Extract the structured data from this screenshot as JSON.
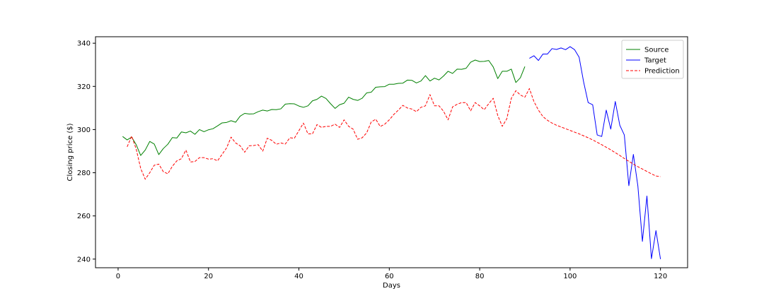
{
  "chart_data": {
    "type": "line",
    "title": "",
    "xlabel": "Days",
    "ylabel": "Closing price ($)",
    "xlim": [
      -5,
      126
    ],
    "ylim": [
      236,
      343
    ],
    "xticks": [
      0,
      20,
      40,
      60,
      80,
      100,
      120
    ],
    "yticks": [
      240,
      260,
      280,
      300,
      320,
      340
    ],
    "grid": false,
    "legend_position": "top-right",
    "series": [
      {
        "name": "Source",
        "color": "#008000",
        "style": "solid",
        "x": [
          1,
          2,
          3,
          4,
          5,
          6,
          7,
          8,
          9,
          10,
          11,
          12,
          13,
          14,
          15,
          16,
          17,
          18,
          19,
          20,
          21,
          22,
          23,
          24,
          25,
          26,
          27,
          28,
          29,
          30,
          31,
          32,
          33,
          34,
          35,
          36,
          37,
          38,
          39,
          40,
          41,
          42,
          43,
          44,
          45,
          46,
          47,
          48,
          49,
          50,
          51,
          52,
          53,
          54,
          55,
          56,
          57,
          58,
          59,
          60,
          61,
          62,
          63,
          64,
          65,
          66,
          67,
          68,
          69,
          70,
          71,
          72,
          73,
          74,
          75,
          76,
          77,
          78,
          79,
          80,
          81,
          82,
          83,
          84,
          85,
          86,
          87,
          88,
          89,
          90
        ],
        "y": [
          296.8,
          295.2,
          296.5,
          293.0,
          288.0,
          290.5,
          294.5,
          293.3,
          288.4,
          291.2,
          293.2,
          296.3,
          296.1,
          298.9,
          298.5,
          299.3,
          297.8,
          300.0,
          299.0,
          299.9,
          300.4,
          301.7,
          303.1,
          303.3,
          304.1,
          303.4,
          306.2,
          307.5,
          307.2,
          307.3,
          308.3,
          309.0,
          308.6,
          309.3,
          309.2,
          309.6,
          311.8,
          312.0,
          311.9,
          310.9,
          310.3,
          311.0,
          313.3,
          314.0,
          315.5,
          314.4,
          312.0,
          309.8,
          311.5,
          312.2,
          315.0,
          314.0,
          313.5,
          314.5,
          317.0,
          317.3,
          319.6,
          319.8,
          319.9,
          321.0,
          321.0,
          321.4,
          321.5,
          322.9,
          322.8,
          321.6,
          322.5,
          325.0,
          322.5,
          323.8,
          323.0,
          324.8,
          327.0,
          326.0,
          328.0,
          327.9,
          328.4,
          331.2,
          332.2,
          331.5,
          331.6,
          332.0,
          329.0,
          323.6,
          327.0,
          327.0,
          328.0,
          321.8,
          324.0,
          329.2
        ]
      },
      {
        "name": "Target",
        "color": "#0000ff",
        "style": "solid",
        "x": [
          91,
          92,
          93,
          94,
          95,
          96,
          97,
          98,
          99,
          100,
          101,
          102,
          103,
          104,
          105,
          106,
          107,
          108,
          109,
          110,
          111,
          112,
          113,
          114,
          115,
          116,
          117,
          118,
          119,
          120
        ],
        "y": [
          333.0,
          334.2,
          332.0,
          335.0,
          335.0,
          337.5,
          337.1,
          337.8,
          337.0,
          338.4,
          337.0,
          333.5,
          322.0,
          312.5,
          311.5,
          297.5,
          296.8,
          309.0,
          300.2,
          313.0,
          302.0,
          297.5,
          274.0,
          288.5,
          273.8,
          248.2,
          269.2,
          240.2,
          253.2,
          240.0
        ]
      },
      {
        "name": "Prediction",
        "color": "#ff0000",
        "style": "dashed",
        "x": [
          2,
          3,
          4,
          5,
          6,
          7,
          8,
          9,
          10,
          11,
          12,
          13,
          14,
          15,
          16,
          17,
          18,
          19,
          20,
          21,
          22,
          23,
          24,
          25,
          26,
          27,
          28,
          29,
          30,
          31,
          32,
          33,
          34,
          35,
          36,
          37,
          38,
          39,
          40,
          41,
          42,
          43,
          44,
          45,
          46,
          47,
          48,
          49,
          50,
          51,
          52,
          53,
          54,
          55,
          56,
          57,
          58,
          59,
          60,
          61,
          62,
          63,
          64,
          65,
          66,
          67,
          68,
          69,
          70,
          71,
          72,
          73,
          74,
          75,
          76,
          77,
          78,
          79,
          80,
          81,
          82,
          83,
          84,
          85,
          86,
          87,
          88,
          89,
          90,
          91,
          92,
          93,
          94,
          95,
          96,
          97,
          98,
          99,
          100,
          101,
          102,
          103,
          104,
          105,
          106,
          107,
          108,
          109,
          110,
          111,
          112,
          113,
          114,
          115,
          116,
          117,
          118,
          119,
          120
        ],
        "y": [
          292.0,
          297.0,
          291.0,
          282.0,
          277.0,
          280.0,
          283.5,
          284.0,
          280.5,
          279.5,
          283.0,
          285.5,
          286.5,
          290.5,
          285.0,
          285.2,
          287.0,
          287.0,
          286.3,
          286.5,
          285.5,
          288.5,
          291.5,
          296.5,
          293.8,
          292.5,
          289.5,
          292.5,
          292.6,
          293.0,
          290.0,
          296.0,
          295.0,
          293.2,
          293.8,
          293.3,
          296.2,
          296.0,
          299.5,
          303.0,
          298.0,
          298.0,
          302.3,
          301.0,
          301.5,
          301.5,
          302.5,
          301.0,
          304.5,
          301.5,
          300.2,
          295.5,
          296.2,
          298.5,
          303.5,
          304.8,
          301.4,
          302.5,
          304.5,
          307.0,
          309.0,
          311.2,
          310.0,
          309.5,
          308.3,
          310.3,
          311.0,
          316.2,
          311.0,
          311.0,
          308.5,
          304.5,
          310.5,
          311.7,
          312.5,
          312.5,
          308.7,
          312.5,
          311.0,
          309.2,
          312.0,
          314.5,
          306.5,
          301.5,
          305.0,
          314.5,
          318.0,
          316.0,
          315.0,
          319.0,
          313.0,
          309.0,
          306.0,
          304.3,
          303.0,
          302.0,
          301.2,
          300.4,
          299.6,
          298.8,
          298.0,
          297.1,
          296.2,
          295.2,
          294.1,
          293.0,
          291.8,
          290.6,
          289.3,
          288.0,
          286.6,
          285.3,
          284.0,
          282.8,
          281.7,
          280.6,
          279.5,
          278.5,
          278.2
        ]
      }
    ]
  }
}
